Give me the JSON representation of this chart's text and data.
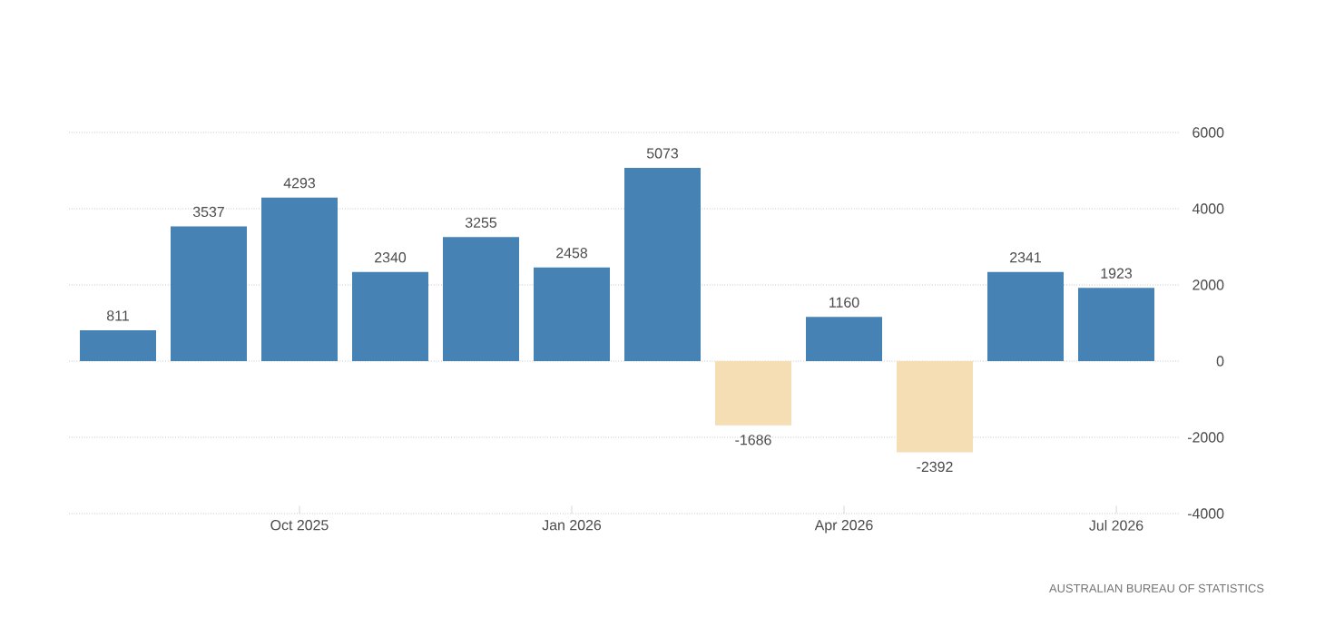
{
  "chart_data": {
    "type": "bar",
    "categories": [
      null,
      null,
      "Oct 2025",
      null,
      null,
      "Jan 2026",
      null,
      null,
      "Apr 2026",
      null,
      null,
      "Jul 2026"
    ],
    "values": [
      811,
      3537,
      4293,
      2340,
      3255,
      2458,
      5073,
      -1686,
      1160,
      -2392,
      2341,
      1923
    ],
    "colors": [
      "#4682b4",
      "#4682b4",
      "#4682b4",
      "#4682b4",
      "#4682b4",
      "#4682b4",
      "#4682b4",
      "#f5deb3",
      "#4682b4",
      "#f5deb3",
      "#4682b4",
      "#4682b4"
    ],
    "ylim": [
      -4000,
      6000
    ],
    "yticks": [
      -4000,
      -2000,
      0,
      2000,
      4000,
      6000
    ],
    "grid": "y",
    "data_labels": true,
    "annotations": [
      "AUSTRALIAN BUREAU OF STATISTICS"
    ]
  }
}
